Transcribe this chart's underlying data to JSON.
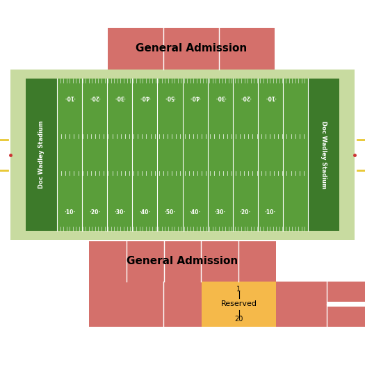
{
  "bg_color": "#ffffff",
  "field_outer_color": "#c8dba0",
  "field_inner_color": "#5a9e3a",
  "endzone_color": "#3d7a2a",
  "ga_color": "#d4706b",
  "reserved_color": "#f5b94a",
  "gp_color": "#e8c832",
  "stadium_label": "Doc Wadley Stadium",
  "yard_labels": [
    "10",
    "20",
    "30",
    "40",
    "50",
    "40",
    "30",
    "20",
    "10"
  ],
  "title_top": "General Admission",
  "title_bottom": "General Admission",
  "title_reserved": "Reserved",
  "row_start": "1",
  "row_end": "20"
}
